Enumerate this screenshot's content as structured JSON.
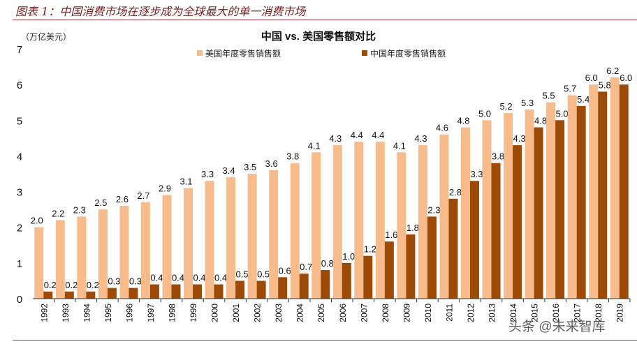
{
  "header": {
    "figure_title": "图表 1：中国消费市场在逐步成为全球最大的单一消费市场"
  },
  "watermark": "头条 @未来智库",
  "chart_data": {
    "type": "bar",
    "title": "中国 vs. 美国零售额对比",
    "ylabel": "（万亿美元）",
    "xlabel": "",
    "ylim": [
      0,
      7
    ],
    "yticks": [
      0,
      1,
      2,
      3,
      4,
      5,
      6,
      7
    ],
    "grid": false,
    "legend_placement": "top",
    "categories": [
      "1992",
      "1993",
      "1994",
      "1995",
      "1996",
      "1997",
      "1998",
      "1999",
      "2000",
      "2001",
      "2002",
      "2003",
      "2004",
      "2005",
      "2006",
      "2007",
      "2008",
      "2009",
      "2010",
      "2011",
      "2012",
      "2013",
      "2014",
      "2015",
      "2016",
      "2017",
      "2018",
      "2019"
    ],
    "series": [
      {
        "name": "美国年度零售销售额",
        "color": "#f8bb8c",
        "values": [
          2.0,
          2.2,
          2.3,
          2.5,
          2.6,
          2.7,
          2.9,
          3.1,
          3.3,
          3.4,
          3.5,
          3.6,
          3.8,
          4.1,
          4.3,
          4.4,
          4.4,
          4.1,
          4.3,
          4.6,
          4.8,
          5.0,
          5.2,
          5.3,
          5.5,
          5.7,
          6.0,
          6.2
        ]
      },
      {
        "name": "中国年度零售销售额",
        "color": "#9c4a06",
        "values": [
          0.2,
          0.2,
          0.2,
          0.3,
          0.3,
          0.4,
          0.4,
          0.4,
          0.4,
          0.5,
          0.5,
          0.6,
          0.7,
          0.8,
          1.0,
          1.2,
          1.6,
          1.8,
          2.3,
          2.8,
          3.3,
          3.8,
          4.3,
          4.8,
          5.0,
          5.4,
          5.8,
          6.0
        ]
      }
    ]
  }
}
